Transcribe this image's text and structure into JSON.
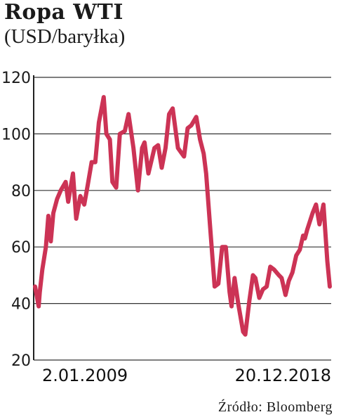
{
  "header": {
    "title": "Ropa WTI",
    "subtitle": "(USD/baryłka)"
  },
  "source": "Źródło: Bloomberg",
  "colors": {
    "line": "#cc3355",
    "grid": "#333333"
  },
  "chart_data": {
    "type": "line",
    "title": "Ropa WTI",
    "subtitle": "(USD/baryłka)",
    "xlabel": "",
    "ylabel": "",
    "ylim": [
      20,
      120
    ],
    "yticks": [
      20,
      40,
      60,
      80,
      100,
      120
    ],
    "x_tick_labels": [
      "2.01.2009",
      "20.12.2018"
    ],
    "x_range": [
      "2009-01-02",
      "2018-12-20"
    ],
    "grid": "horizontal",
    "series": [
      {
        "name": "",
        "x": [
          "2009-01-02",
          "2009-02-15",
          "2009-03-01",
          "2009-04-01",
          "2009-05-15",
          "2009-06-15",
          "2009-07-15",
          "2009-08-15",
          "2009-10-01",
          "2009-11-15",
          "2010-01-15",
          "2010-02-15",
          "2010-04-15",
          "2010-05-25",
          "2010-07-15",
          "2010-09-01",
          "2010-10-15",
          "2010-12-01",
          "2011-01-15",
          "2011-03-01",
          "2011-04-29",
          "2011-06-01",
          "2011-07-15",
          "2011-08-15",
          "2011-10-01",
          "2011-11-15",
          "2012-01-15",
          "2012-03-01",
          "2012-05-01",
          "2012-06-25",
          "2012-08-15",
          "2012-09-15",
          "2012-11-01",
          "2013-01-15",
          "2013-03-01",
          "2013-04-15",
          "2013-06-01",
          "2013-07-15",
          "2013-08-28",
          "2013-11-01",
          "2014-01-15",
          "2014-03-01",
          "2014-04-15",
          "2014-06-15",
          "2014-08-01",
          "2014-09-15",
          "2014-10-15",
          "2014-12-01",
          "2015-01-28",
          "2015-03-15",
          "2015-05-01",
          "2015-06-15",
          "2015-08-01",
          "2015-08-25",
          "2015-10-01",
          "2015-11-15",
          "2016-01-15",
          "2016-02-11",
          "2016-04-01",
          "2016-05-15",
          "2016-06-15",
          "2016-08-01",
          "2016-09-15",
          "2016-11-01",
          "2016-12-15",
          "2017-02-01",
          "2017-04-01",
          "2017-05-05",
          "2017-06-21",
          "2017-08-01",
          "2017-09-15",
          "2017-11-01",
          "2017-12-15",
          "2018-01-25",
          "2018-02-15",
          "2018-03-15",
          "2018-05-22",
          "2018-07-03",
          "2018-08-15",
          "2018-10-03",
          "2018-11-01",
          "2018-11-20",
          "2018-12-20"
        ],
        "values": [
          46,
          39,
          44,
          52,
          60,
          71,
          62,
          72,
          77,
          80,
          83,
          76,
          86,
          70,
          78,
          75,
          82,
          90,
          90,
          104,
          113,
          100,
          98,
          83,
          81,
          100,
          101,
          107,
          95,
          80,
          95,
          97,
          86,
          95,
          96,
          88,
          95,
          107,
          109,
          95,
          92,
          102,
          103,
          106,
          98,
          93,
          86,
          68,
          46,
          47,
          60,
          60,
          44,
          39,
          49,
          40,
          30,
          29,
          41,
          50,
          49,
          42,
          45,
          46,
          53,
          52,
          50,
          49,
          43,
          48,
          51,
          57,
          59,
          64,
          63,
          66,
          72,
          75,
          68,
          75,
          63,
          55,
          46
        ]
      }
    ]
  }
}
